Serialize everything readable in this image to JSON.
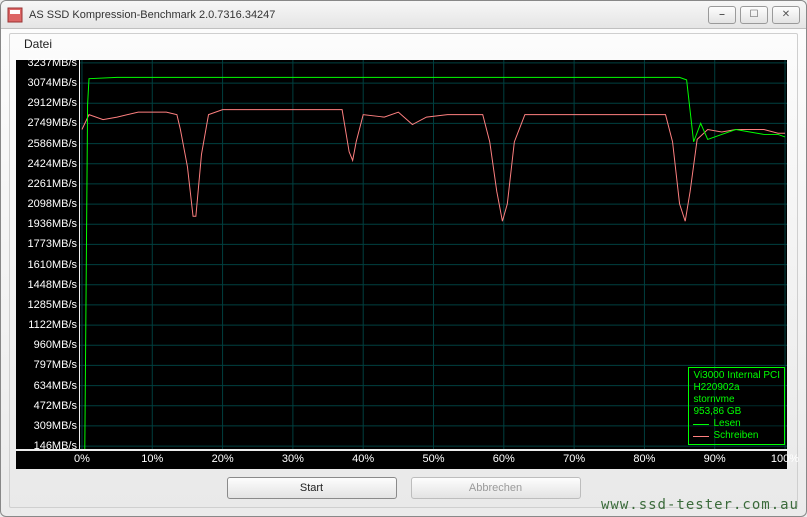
{
  "window": {
    "title": "AS SSD Kompression-Benchmark 2.0.7316.34247",
    "min_symbol": "⎯",
    "max_symbol": "☐",
    "close_symbol": "✕"
  },
  "menu": {
    "file": "Datei"
  },
  "buttons": {
    "start": "Start",
    "cancel": "Abbrechen"
  },
  "watermark": "www.ssd-tester.com.au",
  "legend": {
    "device_line1": "Vi3000 Internal PCI",
    "device_line2": "H220902a",
    "device_line3": "stornvme",
    "device_line4": "953,86 GB",
    "read_label": "Lesen",
    "write_label": "Schreiben",
    "read_color": "#00ff00",
    "write_color": "#ff8080"
  },
  "chart": {
    "type": "line",
    "background_color": "#000000",
    "grid_color": "#004040",
    "axis_text_color": "#ffffff",
    "label_fontsize": 11,
    "y_max": 3237,
    "y_step": 163,
    "y_labels": [
      "3237MB/s",
      "3074MB/s",
      "2912MB/s",
      "2749MB/s",
      "2586MB/s",
      "2424MB/s",
      "2261MB/s",
      "2098MB/s",
      "1936MB/s",
      "1773MB/s",
      "1610MB/s",
      "1448MB/s",
      "1285MB/s",
      "1122MB/s",
      "960MB/s",
      "797MB/s",
      "634MB/s",
      "472MB/s",
      "309MB/s",
      "146MB/s"
    ],
    "x_labels": [
      "0%",
      "10%",
      "20%",
      "30%",
      "40%",
      "50%",
      "60%",
      "70%",
      "80%",
      "90%",
      "100%"
    ],
    "x_step_pct": 10,
    "series": {
      "read": {
        "name": "Lesen",
        "color": "#00ff00",
        "line_width": 1,
        "points_pct_mbps": [
          [
            0,
            100
          ],
          [
            0.4,
            100
          ],
          [
            0.8,
            2900
          ],
          [
            1,
            3110
          ],
          [
            5,
            3120
          ],
          [
            10,
            3120
          ],
          [
            15,
            3120
          ],
          [
            20,
            3120
          ],
          [
            25,
            3120
          ],
          [
            30,
            3120
          ],
          [
            35,
            3120
          ],
          [
            40,
            3120
          ],
          [
            45,
            3120
          ],
          [
            50,
            3120
          ],
          [
            55,
            3120
          ],
          [
            60,
            3120
          ],
          [
            65,
            3120
          ],
          [
            70,
            3120
          ],
          [
            75,
            3120
          ],
          [
            80,
            3120
          ],
          [
            83,
            3120
          ],
          [
            85,
            3120
          ],
          [
            86,
            3100
          ],
          [
            87,
            2600
          ],
          [
            88,
            2750
          ],
          [
            89,
            2620
          ],
          [
            91,
            2660
          ],
          [
            93,
            2700
          ],
          [
            95,
            2680
          ],
          [
            97,
            2660
          ],
          [
            99,
            2660
          ],
          [
            100,
            2640
          ]
        ]
      },
      "write": {
        "name": "Schreiben",
        "color": "#ff8080",
        "line_width": 1,
        "points_pct_mbps": [
          [
            0,
            2700
          ],
          [
            1,
            2820
          ],
          [
            3,
            2780
          ],
          [
            5,
            2800
          ],
          [
            8,
            2840
          ],
          [
            10,
            2840
          ],
          [
            12,
            2840
          ],
          [
            13.5,
            2820
          ],
          [
            14,
            2700
          ],
          [
            15,
            2400
          ],
          [
            15.8,
            2000
          ],
          [
            16.2,
            2000
          ],
          [
            17,
            2500
          ],
          [
            18,
            2820
          ],
          [
            20,
            2860
          ],
          [
            25,
            2860
          ],
          [
            30,
            2860
          ],
          [
            35,
            2860
          ],
          [
            37,
            2860
          ],
          [
            38,
            2520
          ],
          [
            38.5,
            2450
          ],
          [
            39,
            2600
          ],
          [
            40,
            2820
          ],
          [
            43,
            2800
          ],
          [
            45,
            2840
          ],
          [
            47,
            2740
          ],
          [
            49,
            2800
          ],
          [
            52,
            2820
          ],
          [
            55,
            2820
          ],
          [
            57,
            2820
          ],
          [
            58,
            2600
          ],
          [
            59,
            2200
          ],
          [
            59.8,
            1960
          ],
          [
            60.5,
            2100
          ],
          [
            61.5,
            2600
          ],
          [
            63,
            2820
          ],
          [
            66,
            2820
          ],
          [
            70,
            2820
          ],
          [
            75,
            2820
          ],
          [
            80,
            2820
          ],
          [
            82,
            2820
          ],
          [
            83,
            2820
          ],
          [
            84,
            2600
          ],
          [
            85,
            2100
          ],
          [
            85.8,
            1960
          ],
          [
            86.5,
            2200
          ],
          [
            87.5,
            2620
          ],
          [
            89,
            2700
          ],
          [
            91,
            2680
          ],
          [
            93,
            2700
          ],
          [
            95,
            2700
          ],
          [
            97,
            2700
          ],
          [
            99,
            2670
          ],
          [
            100,
            2670
          ]
        ]
      }
    }
  }
}
